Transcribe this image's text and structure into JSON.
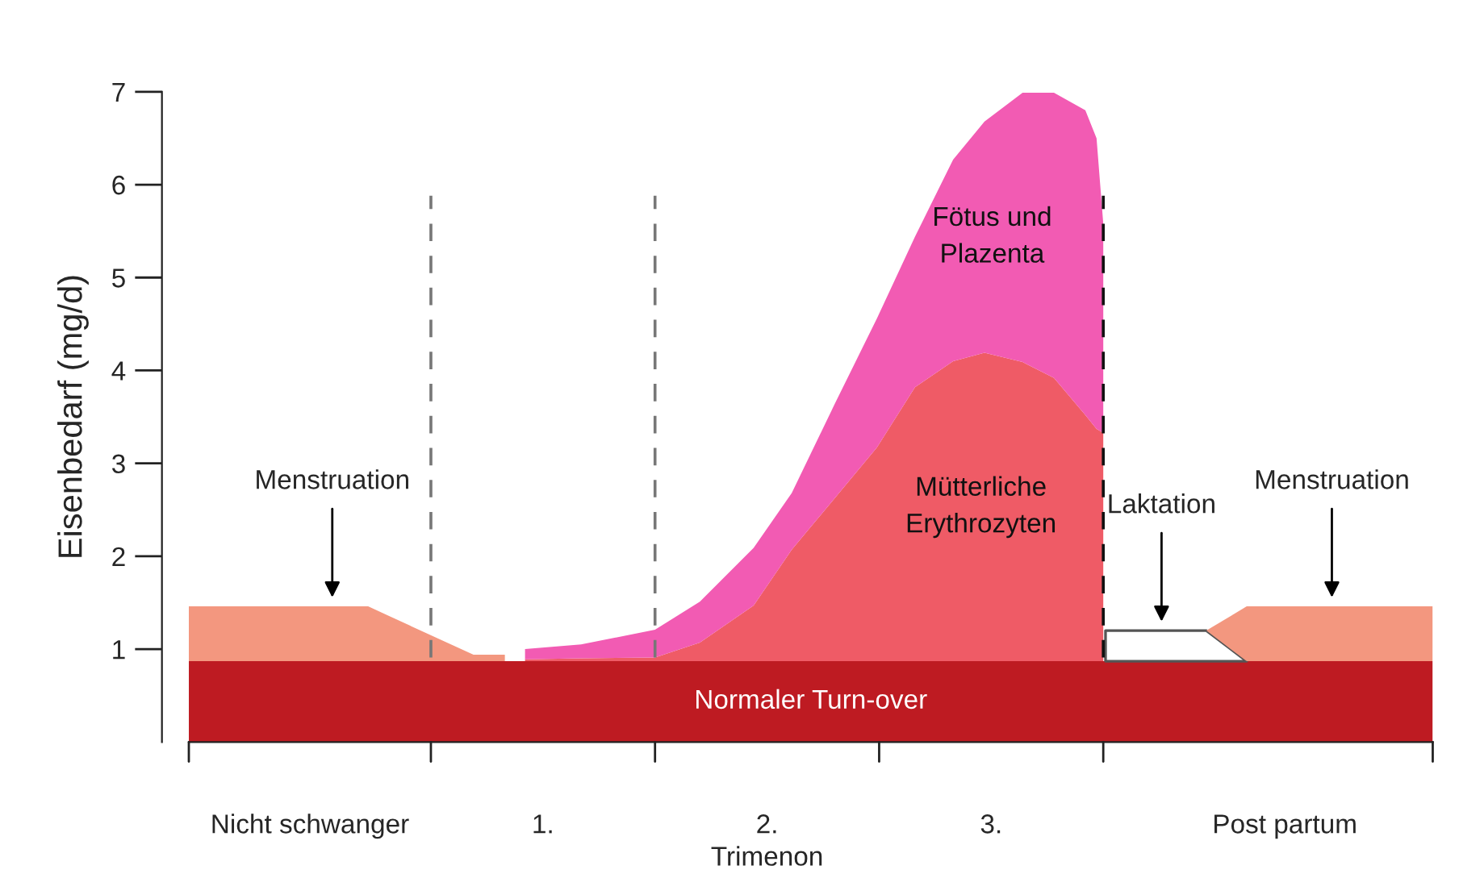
{
  "chart_data": {
    "type": "area",
    "stacked": true,
    "ylabel": "Eisenbedarf (mg/d)",
    "xlabel": "Trimenon",
    "x": [
      -0.58,
      0.06,
      0.22,
      0.69,
      0.83,
      0.92,
      1.17,
      1.5,
      1.7,
      1.94,
      2.11,
      2.3,
      2.49,
      2.66,
      2.83,
      2.97,
      3.14,
      3.28,
      3.42,
      3.47,
      3.5,
      3.51,
      3.76,
      3.96,
      4.14,
      4.52,
      4.97
    ],
    "xlim": [
      -0.7,
      4.97
    ],
    "xticks": [
      {
        "value": -0.58,
        "label": null
      },
      {
        "value": -0.04,
        "label": "Nicht schwanger"
      },
      {
        "value": 0.5,
        "label": null
      },
      {
        "value": 1,
        "label": "1."
      },
      {
        "value": 1.5,
        "label": null
      },
      {
        "value": 2,
        "label": "2."
      },
      {
        "value": 2.5,
        "label": null
      },
      {
        "value": 3,
        "label": "3."
      },
      {
        "value": 3.5,
        "label": null
      },
      {
        "value": 4.31,
        "label": "Post partum"
      },
      {
        "value": 4.97,
        "label": null
      }
    ],
    "ylim": [
      0,
      7
    ],
    "yticks": [
      1,
      2,
      3,
      4,
      5,
      6,
      7
    ],
    "series": [
      {
        "name": "Normaler Turn-over",
        "color": "#be1b22",
        "values": [
          0.87,
          0.87,
          0.87,
          0.87,
          0.87,
          0.87,
          0.87,
          0.87,
          0.87,
          0.87,
          0.87,
          0.87,
          0.87,
          0.87,
          0.87,
          0.87,
          0.87,
          0.87,
          0.87,
          0.87,
          0.87,
          0.87,
          0.87,
          0.87,
          0.87,
          0.87,
          0.87
        ]
      },
      {
        "color": "#ffffff",
        "values": [
          null,
          null,
          null,
          null,
          null,
          null,
          null,
          null,
          null,
          null,
          null,
          null,
          null,
          null,
          null,
          null,
          null,
          null,
          null,
          null,
          null,
          0.33,
          0.33,
          0.33,
          0,
          null,
          null
        ]
      },
      {
        "color": "#f3977f",
        "values": [
          0.59,
          0.59,
          0.59,
          0.07,
          0.07,
          null,
          null,
          null,
          null,
          null,
          null,
          null,
          null,
          null,
          null,
          null,
          null,
          null,
          null,
          null,
          null,
          null,
          null,
          0,
          0.59,
          0.59,
          0.59
        ]
      },
      {
        "name": "Mütterliche\nErythrozyten",
        "color": "#ef5b66",
        "values": [
          null,
          null,
          null,
          null,
          null,
          0.02,
          0.03,
          0.04,
          0.2,
          0.6,
          1.2,
          1.75,
          2.3,
          2.95,
          3.23,
          3.32,
          3.22,
          3.05,
          2.65,
          2.5,
          2.46,
          null,
          null,
          null,
          null,
          null,
          null
        ]
      },
      {
        "name": "Fötus und\nPlazenta",
        "color": "#f25bb3",
        "values": [
          null,
          null,
          null,
          null,
          null,
          0.11,
          0.15,
          0.3,
          0.44,
          0.62,
          0.61,
          1.01,
          1.39,
          1.62,
          2.17,
          2.49,
          2.9,
          3.07,
          3.28,
          3.13,
          2.25,
          null,
          null,
          null,
          null,
          null,
          null
        ]
      }
    ],
    "ref_lines": [
      {
        "axis": "x",
        "value": 0.5,
        "color": "#777777",
        "line_style": "dashed"
      },
      {
        "axis": "x",
        "value": 1.5,
        "color": "#777777",
        "line_style": "dashed"
      },
      {
        "axis": "x",
        "value": 3.5,
        "color": "#111111",
        "line_style": "dashed"
      }
    ],
    "annotations": [
      {
        "text": "Menstruation",
        "x": 0.06,
        "y": 1.46
      },
      {
        "text": "Laktation",
        "x": 3.76,
        "y": 1.2
      },
      {
        "text": "Menstruation",
        "x": 4.52,
        "y": 1.46
      }
    ]
  }
}
